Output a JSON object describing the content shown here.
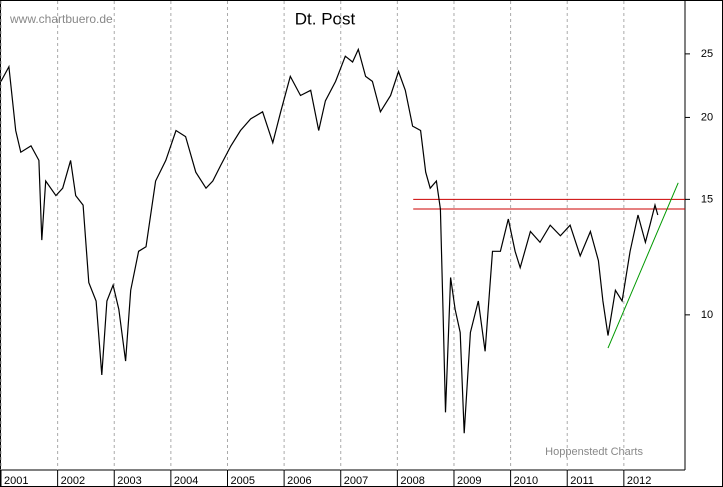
{
  "chart_data": {
    "type": "line",
    "title": "Dt. Post",
    "source": "www.chartbuero.de",
    "credit": "Hoppenstedt Charts",
    "x": [
      2001.0,
      2001.14,
      2001.26,
      2001.35,
      2001.53,
      2001.67,
      2001.72,
      2001.79,
      2001.97,
      2002.09,
      2002.23,
      2002.32,
      2002.45,
      2002.55,
      2002.68,
      2002.78,
      2002.87,
      2002.98,
      2003.08,
      2003.2,
      2003.29,
      2003.43,
      2003.56,
      2003.73,
      2003.91,
      2004.09,
      2004.26,
      2004.44,
      2004.62,
      2004.74,
      2004.88,
      2005.06,
      2005.23,
      2005.41,
      2005.62,
      2005.8,
      2005.94,
      2006.11,
      2006.29,
      2006.47,
      2006.61,
      2006.73,
      2006.91,
      2007.08,
      2007.21,
      2007.31,
      2007.44,
      2007.56,
      2007.7,
      2007.88,
      2008.02,
      2008.14,
      2008.27,
      2008.41,
      2008.5,
      2008.58,
      2008.69,
      2008.76,
      2008.81,
      2008.85,
      2008.94,
      2009.02,
      2009.11,
      2009.18,
      2009.29,
      2009.43,
      2009.55,
      2009.68,
      2009.82,
      2009.96,
      2010.08,
      2010.17,
      2010.35,
      2010.52,
      2010.7,
      2010.88,
      2011.05,
      2011.23,
      2011.41,
      2011.55,
      2011.63,
      2011.72,
      2011.85,
      2011.97,
      2012.11,
      2012.25,
      2012.38,
      2012.46,
      2012.55,
      2012.6
    ],
    "values": [
      22.7,
      23.9,
      19.1,
      17.7,
      18.1,
      17.2,
      13.0,
      16.0,
      15.2,
      15.6,
      17.2,
      15.2,
      14.7,
      11.2,
      10.5,
      8.1,
      10.5,
      11.1,
      10.2,
      8.5,
      10.9,
      12.5,
      12.7,
      16.0,
      17.2,
      19.1,
      18.7,
      16.5,
      15.6,
      16.0,
      16.9,
      18.1,
      19.1,
      19.9,
      20.4,
      18.3,
      20.4,
      23.1,
      21.6,
      22.0,
      19.1,
      21.2,
      22.7,
      24.8,
      24.3,
      25.4,
      23.1,
      22.7,
      20.4,
      21.6,
      23.5,
      22.0,
      19.4,
      19.1,
      16.5,
      15.6,
      16.0,
      14.5,
      9.9,
      7.1,
      11.4,
      10.2,
      9.4,
      6.6,
      9.4,
      10.5,
      8.8,
      12.5,
      12.5,
      14.0,
      12.5,
      11.8,
      13.4,
      12.9,
      13.7,
      13.2,
      13.7,
      12.3,
      13.4,
      12.1,
      10.5,
      9.3,
      10.9,
      10.5,
      12.5,
      14.2,
      12.9,
      13.7,
      14.7,
      14.2
    ],
    "color": "#000000",
    "hlines": [
      {
        "value": 15.0,
        "x": [
          2008.28,
          2013.08
        ],
        "color": "#cc0000"
      },
      {
        "value": 14.5,
        "x": [
          2008.28,
          2013.08
        ],
        "color": "#cc0000"
      }
    ],
    "trendline": {
      "x": [
        2011.72,
        2012.96
      ],
      "values": [
        8.9,
        15.9
      ],
      "color": "#009900"
    },
    "xlim": [
      2001,
      2013.08
    ],
    "xticks": [
      2001,
      2002,
      2003,
      2004,
      2005,
      2006,
      2007,
      2008,
      2009,
      2010,
      2011,
      2012
    ],
    "ylim": [
      5.8,
      30.1
    ],
    "yticks": [
      10,
      15,
      20,
      25
    ],
    "log_y": true,
    "grid": "x"
  }
}
